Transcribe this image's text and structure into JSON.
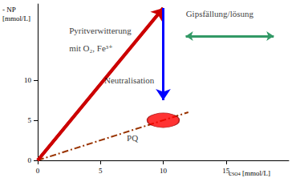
{
  "chart_data": {
    "type": "line",
    "xlabel": {
      "base": "c",
      "sub": "SO4",
      "rest": " [mmol/L]"
    },
    "ylabel": [
      "- NP",
      "[mmol/L]"
    ],
    "xlim": [
      0,
      20
    ],
    "ylim": [
      0,
      19.5
    ],
    "xticks": [
      0,
      5,
      10,
      15
    ],
    "yticks": [
      0,
      5,
      10
    ],
    "grid": false,
    "series": [
      {
        "type": "line",
        "color": "#cc0000",
        "line_style": "double",
        "marker": "arrow",
        "x": [
          0,
          10
        ],
        "values": [
          0,
          19
        ]
      },
      {
        "type": "line",
        "color": "#0000ff",
        "line_style": "solid",
        "marker": "arrow",
        "x": [
          10,
          10
        ],
        "values": [
          19,
          7.5
        ]
      },
      {
        "type": "line",
        "color": "#993300",
        "line_style": "dashdot",
        "marker": "none",
        "x": [
          0,
          12
        ],
        "values": [
          0,
          6
        ]
      },
      {
        "type": "scatter",
        "color": "#ff0000",
        "marker": "ellipse",
        "x": [
          10
        ],
        "values": [
          5
        ]
      },
      {
        "type": "line",
        "color": "#339966",
        "line_style": "solid",
        "marker": "double_arrow",
        "x": [
          11.8,
          18.8
        ],
        "values": [
          15.5,
          15.5
        ]
      }
    ],
    "annotations": [
      {
        "text": "Pyritverwitterung",
        "x": 2.5,
        "y": 16.2
      },
      {
        "text": "mit O₂, Fe³⁺",
        "x": 2.5,
        "y": 14
      },
      {
        "text": "Neutralisation",
        "x": 5.3,
        "y": 10
      },
      {
        "text": "PQ",
        "x": 7.1,
        "y": 2.8
      },
      {
        "text": "Gipsfällung/lösung",
        "x": 11.8,
        "y": 18.3
      }
    ]
  }
}
